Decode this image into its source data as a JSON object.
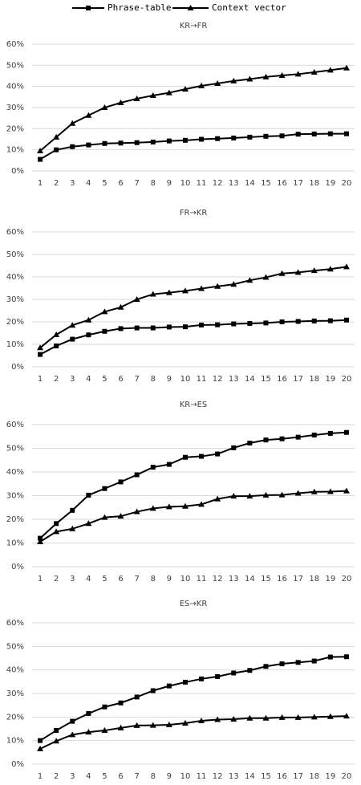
{
  "chart_data": [
    {
      "type": "line",
      "title": "KR→FR",
      "categories": [
        "1",
        "2",
        "3",
        "4",
        "5",
        "6",
        "7",
        "8",
        "9",
        "10",
        "11",
        "12",
        "13",
        "14",
        "15",
        "16",
        "17",
        "18",
        "19",
        "20"
      ],
      "series": [
        {
          "name": "Phrase-table",
          "color": "#000000",
          "marker": "square",
          "values": [
            5.5,
            10,
            11.5,
            12.3,
            13,
            13.2,
            13.4,
            13.7,
            14.2,
            14.5,
            15,
            15.3,
            15.6,
            16,
            16.4,
            16.6,
            17.4,
            17.5,
            17.6,
            17.6
          ]
        },
        {
          "name": "Context vector",
          "color": "#000000",
          "marker": "triangle",
          "values": [
            9.5,
            16,
            22.5,
            26.3,
            30,
            32.3,
            34.2,
            35.7,
            37,
            38.7,
            40.3,
            41.4,
            42.6,
            43.5,
            44.5,
            45.2,
            45.8,
            46.7,
            47.7,
            48.7
          ]
        }
      ],
      "ylim": [
        0,
        60
      ],
      "yticks": [
        {
          "value": 0,
          "label": "0%"
        },
        {
          "value": 10,
          "label": "10%"
        },
        {
          "value": 20,
          "label": "20%"
        },
        {
          "value": 30,
          "label": "30%"
        },
        {
          "value": 40,
          "label": "40%"
        },
        {
          "value": 50,
          "label": "50%"
        },
        {
          "value": 60,
          "label": "60%"
        }
      ],
      "grid": true
    },
    {
      "type": "line",
      "title": "FR→KR",
      "categories": [
        "1",
        "2",
        "3",
        "4",
        "5",
        "6",
        "7",
        "8",
        "9",
        "10",
        "11",
        "12",
        "13",
        "14",
        "15",
        "16",
        "17",
        "18",
        "19",
        "20"
      ],
      "series": [
        {
          "color": "#000000",
          "marker": "square",
          "values": [
            5.5,
            9.3,
            12.3,
            14.2,
            15.8,
            17,
            17.3,
            17.3,
            17.7,
            17.8,
            18.6,
            18.7,
            19.1,
            19.3,
            19.5,
            20,
            20.2,
            20.4,
            20.5,
            20.8
          ]
        },
        {
          "color": "#000000",
          "marker": "triangle",
          "values": [
            8.5,
            14.3,
            18.5,
            20.8,
            24.5,
            26.5,
            30,
            32.3,
            33,
            33.8,
            34.8,
            35.8,
            36.7,
            38.5,
            39.8,
            41.5,
            42,
            42.8,
            43.5,
            44.5
          ]
        }
      ],
      "ylim": [
        0,
        60
      ],
      "yticks": [
        {
          "value": 0,
          "label": "0%"
        },
        {
          "value": 10,
          "label": "10%"
        },
        {
          "value": 20,
          "label": "20%"
        },
        {
          "value": 30,
          "label": "30%"
        },
        {
          "value": 40,
          "label": "40%"
        },
        {
          "value": 50,
          "label": "50%"
        },
        {
          "value": 60,
          "label": "60%"
        }
      ],
      "grid": true
    },
    {
      "type": "line",
      "title": "KR→ES",
      "categories": [
        "1",
        "2",
        "3",
        "4",
        "5",
        "6",
        "7",
        "8",
        "9",
        "10",
        "11",
        "12",
        "13",
        "14",
        "15",
        "16",
        "17",
        "18",
        "19",
        "20"
      ],
      "series": [
        {
          "color": "#000000",
          "marker": "square",
          "values": [
            12,
            18.2,
            23.8,
            30.2,
            33,
            35.8,
            38.8,
            42,
            43.2,
            46.2,
            46.6,
            47.6,
            50.2,
            52.2,
            53.5,
            54,
            54.7,
            55.6,
            56.3,
            56.7
          ]
        },
        {
          "color": "#000000",
          "marker": "triangle",
          "values": [
            10.5,
            14.8,
            16,
            18.2,
            20.8,
            21.3,
            23.2,
            24.6,
            25.3,
            25.5,
            26.3,
            28.6,
            29.8,
            29.8,
            30.2,
            30.3,
            31,
            31.6,
            31.7,
            32
          ]
        }
      ],
      "ylim": [
        0,
        60
      ],
      "yticks": [
        {
          "value": 0,
          "label": "0%"
        },
        {
          "value": 10,
          "label": "10%"
        },
        {
          "value": 20,
          "label": "20%"
        },
        {
          "value": 30,
          "label": "30%"
        },
        {
          "value": 40,
          "label": "40%"
        },
        {
          "value": 50,
          "label": "50%"
        },
        {
          "value": 60,
          "label": "60%"
        }
      ],
      "grid": true
    },
    {
      "type": "line",
      "title": "ES→KR",
      "categories": [
        "1",
        "2",
        "3",
        "4",
        "5",
        "6",
        "7",
        "8",
        "9",
        "10",
        "11",
        "12",
        "13",
        "14",
        "15",
        "16",
        "17",
        "18",
        "19",
        "20"
      ],
      "series": [
        {
          "color": "#000000",
          "marker": "square",
          "values": [
            10,
            14.3,
            18.2,
            21.5,
            24.3,
            26,
            28.5,
            31.2,
            33.2,
            34.8,
            36.2,
            37.2,
            38.7,
            39.8,
            41.5,
            42.6,
            43.2,
            43.8,
            45.5,
            45.6
          ]
        },
        {
          "color": "#000000",
          "marker": "triangle",
          "values": [
            6.5,
            9.8,
            12.5,
            13.6,
            14.3,
            15.4,
            16.4,
            16.5,
            16.7,
            17.4,
            18.4,
            18.9,
            19.1,
            19.5,
            19.5,
            19.8,
            19.8,
            20,
            20.2,
            20.4
          ]
        }
      ],
      "ylim": [
        0,
        60
      ],
      "yticks": [
        {
          "value": 0,
          "label": "0%"
        },
        {
          "value": 10,
          "label": "10%"
        },
        {
          "value": 20,
          "label": "20%"
        },
        {
          "value": 30,
          "label": "30%"
        },
        {
          "value": 40,
          "label": "40%"
        },
        {
          "value": 50,
          "label": "50%"
        },
        {
          "value": 60,
          "label": "60%"
        }
      ],
      "grid": true
    }
  ]
}
